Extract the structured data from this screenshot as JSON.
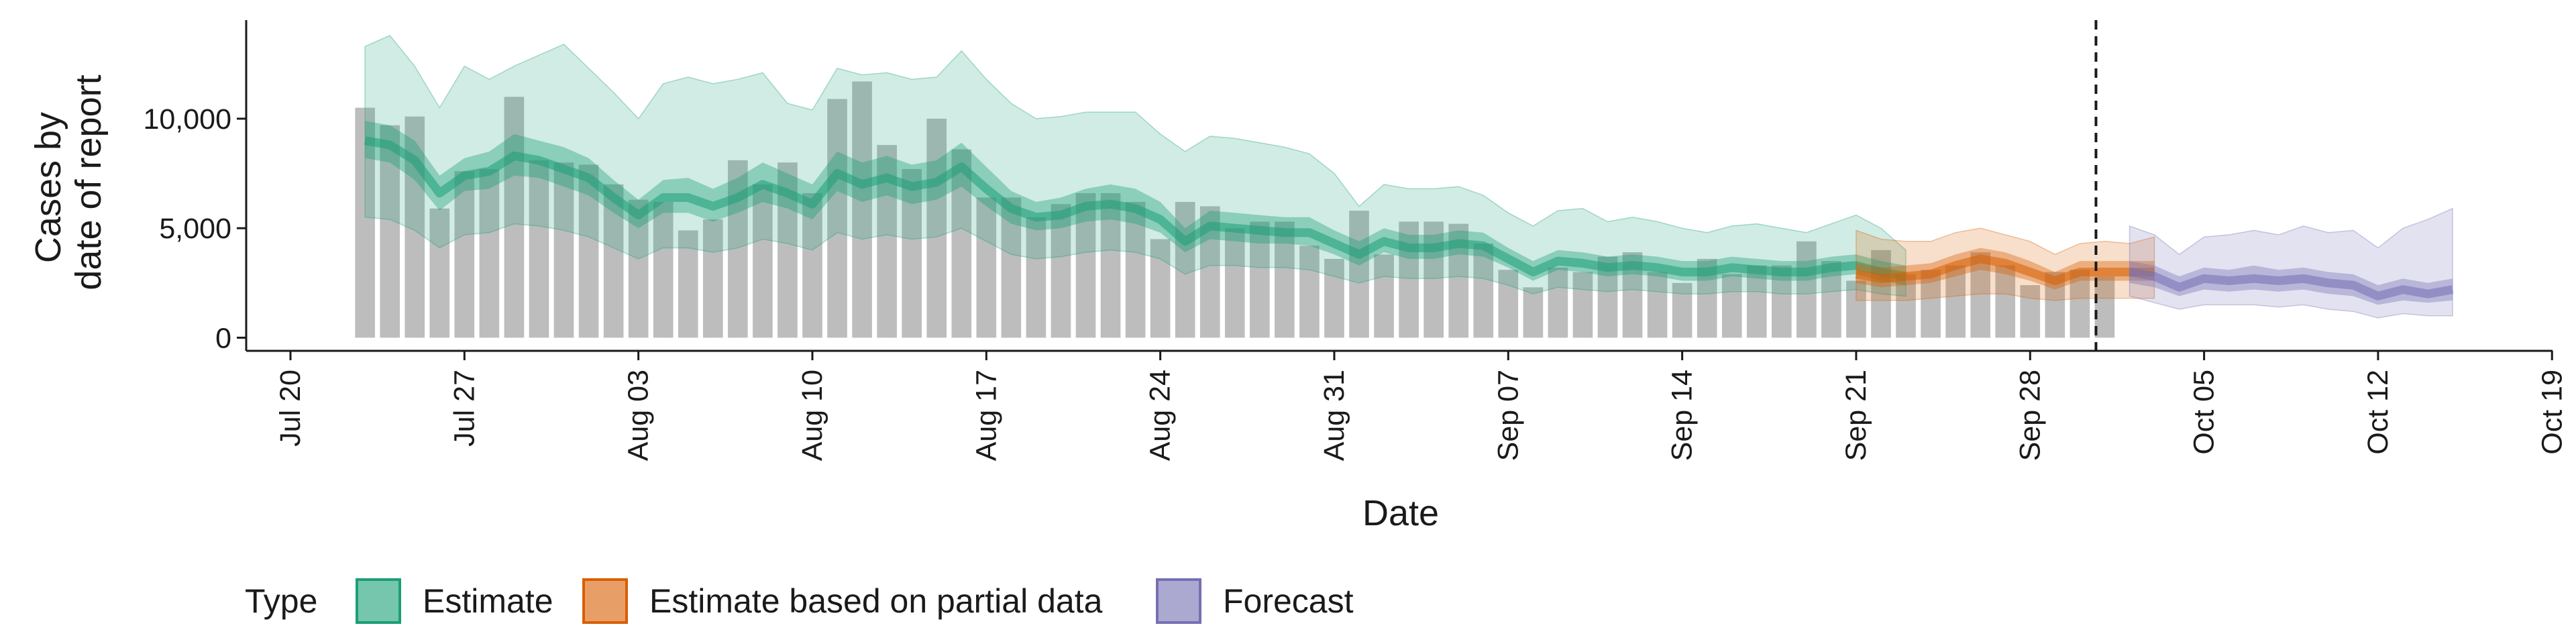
{
  "chart_data": {
    "type": "bar",
    "xlabel": "Date",
    "ylabel_lines": [
      "Cases by",
      "date of report"
    ],
    "x_domain": [
      "2020-07-20",
      "2020-10-19"
    ],
    "ylim": [
      -600,
      14500
    ],
    "x_ticks": [
      "Jul 20",
      "Jul 27",
      "Aug 03",
      "Aug 10",
      "Aug 17",
      "Aug 24",
      "Aug 31",
      "Sep 07",
      "Sep 14",
      "Sep 21",
      "Sep 28",
      "Oct 05",
      "Oct 12",
      "Oct 19"
    ],
    "x_tick_dates": [
      "2020-07-20",
      "2020-07-27",
      "2020-08-03",
      "2020-08-10",
      "2020-08-17",
      "2020-08-24",
      "2020-08-31",
      "2020-09-07",
      "2020-09-14",
      "2020-09-21",
      "2020-09-28",
      "2020-10-05",
      "2020-10-12",
      "2020-10-19"
    ],
    "y_ticks": [
      0,
      5000,
      10000
    ],
    "y_tick_labels": [
      "0",
      "5,000",
      "10,000"
    ],
    "grid": false,
    "forecast_date": "2020-10-01",
    "bars": {
      "start_date": "2020-07-23",
      "color": "#bdbdbd",
      "values": [
        10500,
        9700,
        10100,
        5900,
        7600,
        7700,
        11000,
        8100,
        8000,
        7900,
        7000,
        6300,
        6200,
        4900,
        5400,
        8100,
        7000,
        8000,
        6600,
        10900,
        11700,
        8800,
        7700,
        10000,
        8600,
        6400,
        6400,
        5500,
        6100,
        6600,
        6600,
        6200,
        4500,
        6200,
        6000,
        5000,
        5300,
        5300,
        4200,
        3600,
        5800,
        3800,
        5300,
        5300,
        5200,
        4300,
        3100,
        2300,
        3200,
        3000,
        3700,
        3900,
        3000,
        2500,
        3600,
        2900,
        3300,
        3300,
        4400,
        3500,
        2600,
        4000,
        2900,
        3100,
        3300,
        3900,
        3300,
        2400,
        3000,
        3100,
        2800
      ]
    },
    "series": [
      {
        "name": "Estimate",
        "color": "#1b9e77",
        "start_date": "2020-07-23",
        "median": [
          9000,
          8800,
          8100,
          6600,
          7400,
          7600,
          8300,
          8100,
          7700,
          7300,
          6400,
          5600,
          6400,
          6400,
          6000,
          6400,
          7000,
          6600,
          6100,
          7500,
          7000,
          7300,
          6900,
          7100,
          7800,
          6800,
          5900,
          5500,
          5600,
          6000,
          6100,
          5900,
          5400,
          4400,
          5100,
          5000,
          4900,
          4800,
          4800,
          4300,
          3800,
          4400,
          4100,
          4100,
          4300,
          4200,
          3600,
          3000,
          3500,
          3400,
          3200,
          3300,
          3200,
          3000,
          3000,
          3200,
          3100,
          3000,
          3000,
          3200,
          3300,
          3000,
          2800
        ],
        "inner_lower": [
          8200,
          8000,
          7200,
          5800,
          6700,
          6800,
          7400,
          7300,
          6900,
          6500,
          5700,
          5000,
          5700,
          5700,
          5300,
          5700,
          6200,
          5900,
          5400,
          6700,
          6200,
          6500,
          6100,
          6300,
          6900,
          6000,
          5200,
          4900,
          5000,
          5300,
          5400,
          5200,
          4800,
          3900,
          4500,
          4400,
          4300,
          4300,
          4200,
          3800,
          3300,
          3900,
          3600,
          3600,
          3800,
          3700,
          3200,
          2600,
          3100,
          3000,
          2800,
          2900,
          2800,
          2600,
          2600,
          2800,
          2700,
          2600,
          2600,
          2800,
          2900,
          2600,
          2400
        ],
        "inner_upper": [
          9900,
          9700,
          9000,
          7400,
          8200,
          8500,
          9300,
          9000,
          8700,
          8200,
          7200,
          6300,
          7200,
          7300,
          6800,
          7300,
          8000,
          7500,
          7000,
          8500,
          8000,
          8300,
          7900,
          8100,
          8900,
          7800,
          6700,
          6200,
          6400,
          6800,
          7000,
          6800,
          6200,
          5000,
          5800,
          5700,
          5600,
          5500,
          5500,
          4900,
          4400,
          5000,
          4700,
          4700,
          4900,
          4800,
          4100,
          3500,
          4000,
          3900,
          3700,
          3800,
          3700,
          3500,
          3500,
          3700,
          3600,
          3500,
          3500,
          3700,
          3800,
          3500,
          3300
        ],
        "outer_lower": [
          5500,
          5400,
          4900,
          4100,
          4700,
          4800,
          5200,
          5100,
          4900,
          4600,
          4100,
          3600,
          4100,
          4100,
          3900,
          4100,
          4500,
          4300,
          4000,
          4800,
          4500,
          4700,
          4500,
          4600,
          5000,
          4400,
          3800,
          3600,
          3700,
          3900,
          4000,
          3900,
          3600,
          2900,
          3300,
          3300,
          3200,
          3200,
          3100,
          2800,
          2500,
          2800,
          2700,
          2700,
          2800,
          2700,
          2400,
          2000,
          2300,
          2200,
          2100,
          2200,
          2100,
          2000,
          2000,
          2100,
          2100,
          2000,
          2000,
          2100,
          2200,
          2000,
          1900
        ],
        "outer_upper": [
          13300,
          13800,
          12400,
          10500,
          12400,
          11800,
          12400,
          12900,
          13400,
          12300,
          11200,
          10000,
          11600,
          11900,
          11600,
          11800,
          12100,
          10700,
          10400,
          12300,
          12000,
          12100,
          11800,
          11900,
          13100,
          11800,
          10700,
          10000,
          10100,
          10300,
          10300,
          10300,
          9300,
          8500,
          9200,
          9100,
          8900,
          8700,
          8400,
          7500,
          6000,
          7000,
          6800,
          6800,
          6900,
          6500,
          5700,
          5100,
          5800,
          5900,
          5300,
          5500,
          5300,
          5000,
          4800,
          5100,
          5200,
          5000,
          4800,
          5200,
          5600,
          5000,
          4000
        ]
      },
      {
        "name": "Estimate based on partial data",
        "color": "#d95f02",
        "start_date": "2020-09-21",
        "median": [
          2900,
          2700,
          2800,
          2900,
          3300,
          3600,
          3400,
          3000,
          2600,
          3000,
          3000,
          3000,
          3000
        ],
        "inner_lower": [
          2500,
          2300,
          2400,
          2500,
          2800,
          3100,
          2900,
          2600,
          2200,
          2600,
          2600,
          2600,
          2600
        ],
        "inner_upper": [
          3400,
          3200,
          3300,
          3400,
          3800,
          4100,
          3900,
          3500,
          3000,
          3500,
          3500,
          3500,
          3500
        ],
        "outer_lower": [
          1700,
          1700,
          1700,
          1800,
          1900,
          2000,
          2000,
          1800,
          1700,
          1800,
          1800,
          1800,
          1800
        ],
        "outer_upper": [
          4900,
          4500,
          4400,
          4400,
          4800,
          5000,
          4700,
          4400,
          3800,
          4300,
          4400,
          4300,
          4600
        ]
      },
      {
        "name": "Forecast",
        "color": "#7570b3",
        "start_date": "2020-10-02",
        "median": [
          3000,
          2800,
          2300,
          2700,
          2600,
          2700,
          2600,
          2700,
          2500,
          2400,
          1900,
          2200,
          2000,
          2200
        ],
        "inner_lower": [
          2500,
          2300,
          1900,
          2200,
          2100,
          2200,
          2100,
          2200,
          2000,
          1900,
          1500,
          1700,
          1600,
          1700
        ],
        "inner_upper": [
          3500,
          3300,
          2800,
          3200,
          3100,
          3300,
          3100,
          3200,
          3000,
          2900,
          2400,
          2700,
          2500,
          2700
        ],
        "outer_lower": [
          1900,
          1600,
          1300,
          1500,
          1500,
          1500,
          1400,
          1500,
          1300,
          1200,
          900,
          1100,
          1000,
          1000
        ],
        "outer_upper": [
          5100,
          4700,
          3800,
          4600,
          4700,
          4900,
          4700,
          5100,
          4800,
          4900,
          4100,
          5000,
          5400,
          5900
        ]
      }
    ],
    "legend": {
      "title": "Type",
      "placement": "bottom-left",
      "entries": [
        {
          "label": "Estimate",
          "color": "#1b9e77"
        },
        {
          "label": "Estimate based on partial data",
          "color": "#d95f02"
        },
        {
          "label": "Forecast",
          "color": "#7570b3"
        }
      ]
    }
  }
}
